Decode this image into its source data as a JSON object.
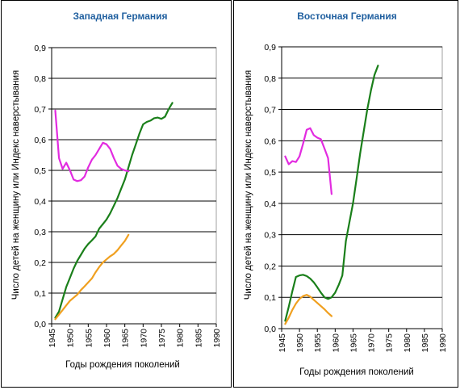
{
  "colors": {
    "green": "#1a7f1a",
    "magenta": "#e22be0",
    "orange": "#f0a020",
    "title": "#1f5f9f",
    "grid": "#000000",
    "plot_border": "#a0a0a0"
  },
  "chart_data": [
    {
      "type": "line",
      "title": "Западная Германия",
      "xlabel": "Годы рождения поколений",
      "ylabel": "Число детей на женщину или Индекс наверстывания",
      "xlim": [
        1945,
        1990
      ],
      "ylim": [
        0,
        0.9
      ],
      "x_ticks": [
        "1945",
        "1950",
        "1955",
        "1960",
        "1965",
        "1970",
        "1975",
        "1980",
        "1985",
        "1990"
      ],
      "y_ticks": [
        "0,0",
        "0,1",
        "0,2",
        "0,3",
        "0,4",
        "0,5",
        "0,6",
        "0,7",
        "0,8",
        "0,9"
      ],
      "grid": true,
      "series": [
        {
          "color": "green",
          "x": [
            1946,
            1947,
            1948,
            1949,
            1950,
            1951,
            1952,
            1953,
            1954,
            1955,
            1956,
            1957,
            1958,
            1959,
            1960,
            1961,
            1962,
            1963,
            1964,
            1965,
            1966,
            1967,
            1968,
            1969,
            1970,
            1971,
            1972,
            1973,
            1974,
            1975,
            1976,
            1977,
            1978
          ],
          "y": [
            0.02,
            0.04,
            0.08,
            0.12,
            0.15,
            0.18,
            0.205,
            0.225,
            0.245,
            0.26,
            0.272,
            0.285,
            0.31,
            0.325,
            0.34,
            0.36,
            0.385,
            0.41,
            0.44,
            0.47,
            0.51,
            0.55,
            0.585,
            0.62,
            0.65,
            0.658,
            0.662,
            0.67,
            0.672,
            0.668,
            0.675,
            0.7,
            0.72
          ]
        },
        {
          "color": "magenta",
          "x": [
            1946,
            1947,
            1948,
            1949,
            1950,
            1951,
            1952,
            1953,
            1954,
            1955,
            1956,
            1957,
            1958,
            1959,
            1960,
            1961,
            1962,
            1963,
            1964,
            1965,
            1966
          ],
          "y": [
            0.695,
            0.54,
            0.505,
            0.525,
            0.5,
            0.47,
            0.465,
            0.468,
            0.48,
            0.51,
            0.535,
            0.55,
            0.57,
            0.59,
            0.585,
            0.57,
            0.54,
            0.515,
            0.505,
            0.5,
            0.497
          ]
        },
        {
          "color": "orange",
          "x": [
            1946,
            1947,
            1948,
            1949,
            1950,
            1951,
            1952,
            1953,
            1954,
            1955,
            1956,
            1957,
            1958,
            1959,
            1960,
            1961,
            1962,
            1963,
            1964,
            1965,
            1966
          ],
          "y": [
            0.015,
            0.03,
            0.045,
            0.06,
            0.075,
            0.085,
            0.095,
            0.11,
            0.122,
            0.135,
            0.148,
            0.168,
            0.185,
            0.2,
            0.21,
            0.22,
            0.228,
            0.24,
            0.255,
            0.27,
            0.29
          ]
        }
      ]
    },
    {
      "type": "line",
      "title": "Восточная Германия",
      "xlabel": "Годы рождения поколений",
      "ylabel": "Число детей на женщину или Индекс наверстывания",
      "xlim": [
        1945,
        1990
      ],
      "ylim": [
        0,
        0.9
      ],
      "x_ticks": [
        "1945",
        "1950",
        "1955",
        "1960",
        "1965",
        "1970",
        "1975",
        "1980",
        "1985",
        "1990"
      ],
      "y_ticks": [
        "0,0",
        "0,1",
        "0,2",
        "0,3",
        "0,4",
        "0,5",
        "0,6",
        "0,7",
        "0,8",
        "0,9"
      ],
      "grid": true,
      "series": [
        {
          "color": "green",
          "x": [
            1946,
            1947,
            1948,
            1949,
            1950,
            1951,
            1952,
            1953,
            1954,
            1955,
            1956,
            1957,
            1958,
            1959,
            1960,
            1961,
            1962,
            1963,
            1964,
            1965,
            1966,
            1967,
            1968,
            1969,
            1970,
            1971,
            1972
          ],
          "y": [
            0.025,
            0.07,
            0.12,
            0.165,
            0.17,
            0.172,
            0.168,
            0.16,
            0.148,
            0.132,
            0.115,
            0.1,
            0.095,
            0.1,
            0.115,
            0.14,
            0.17,
            0.28,
            0.34,
            0.4,
            0.48,
            0.56,
            0.63,
            0.7,
            0.76,
            0.81,
            0.84
          ]
        },
        {
          "color": "magenta",
          "x": [
            1946,
            1947,
            1948,
            1949,
            1950,
            1951,
            1952,
            1953,
            1954,
            1955,
            1956,
            1957,
            1958,
            1959
          ],
          "y": [
            0.55,
            0.525,
            0.535,
            0.532,
            0.55,
            0.59,
            0.635,
            0.64,
            0.618,
            0.61,
            0.605,
            0.575,
            0.545,
            0.43
          ]
        },
        {
          "color": "orange",
          "x": [
            1946,
            1947,
            1948,
            1949,
            1950,
            1951,
            1952,
            1953,
            1954,
            1955,
            1956,
            1957,
            1958,
            1959
          ],
          "y": [
            0.015,
            0.035,
            0.06,
            0.08,
            0.095,
            0.104,
            0.108,
            0.102,
            0.092,
            0.082,
            0.072,
            0.062,
            0.05,
            0.04
          ]
        }
      ]
    }
  ]
}
